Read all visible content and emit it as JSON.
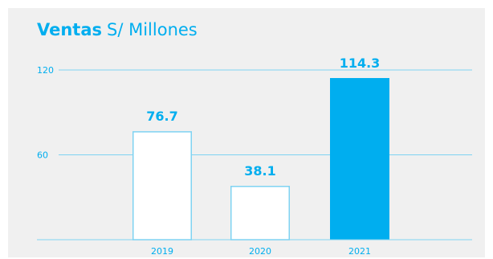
{
  "header": {
    "title": "Ventas",
    "subtitle": "S/ Millones"
  },
  "colors": {
    "accent": "#00aeef",
    "panel": "#f0f0f0",
    "gridline": "#7fd3f2",
    "bar_outline": "#7fd3f2",
    "bar_fill_empty": "#ffffff"
  },
  "chart_data": {
    "type": "bar",
    "title": "Ventas",
    "subtitle": "S/ Millones",
    "categories": [
      "2019",
      "2020",
      "2021"
    ],
    "values": [
      76.7,
      38.1,
      114.3
    ],
    "value_labels": [
      "76.7",
      "38.1",
      "114.3"
    ],
    "highlight": [
      false,
      false,
      true
    ],
    "ylim": [
      0,
      120
    ],
    "yticks": [
      60,
      120
    ],
    "ytick_labels": [
      "60",
      "120"
    ],
    "grid": true,
    "legend": "none",
    "xlabel": "",
    "ylabel": ""
  }
}
